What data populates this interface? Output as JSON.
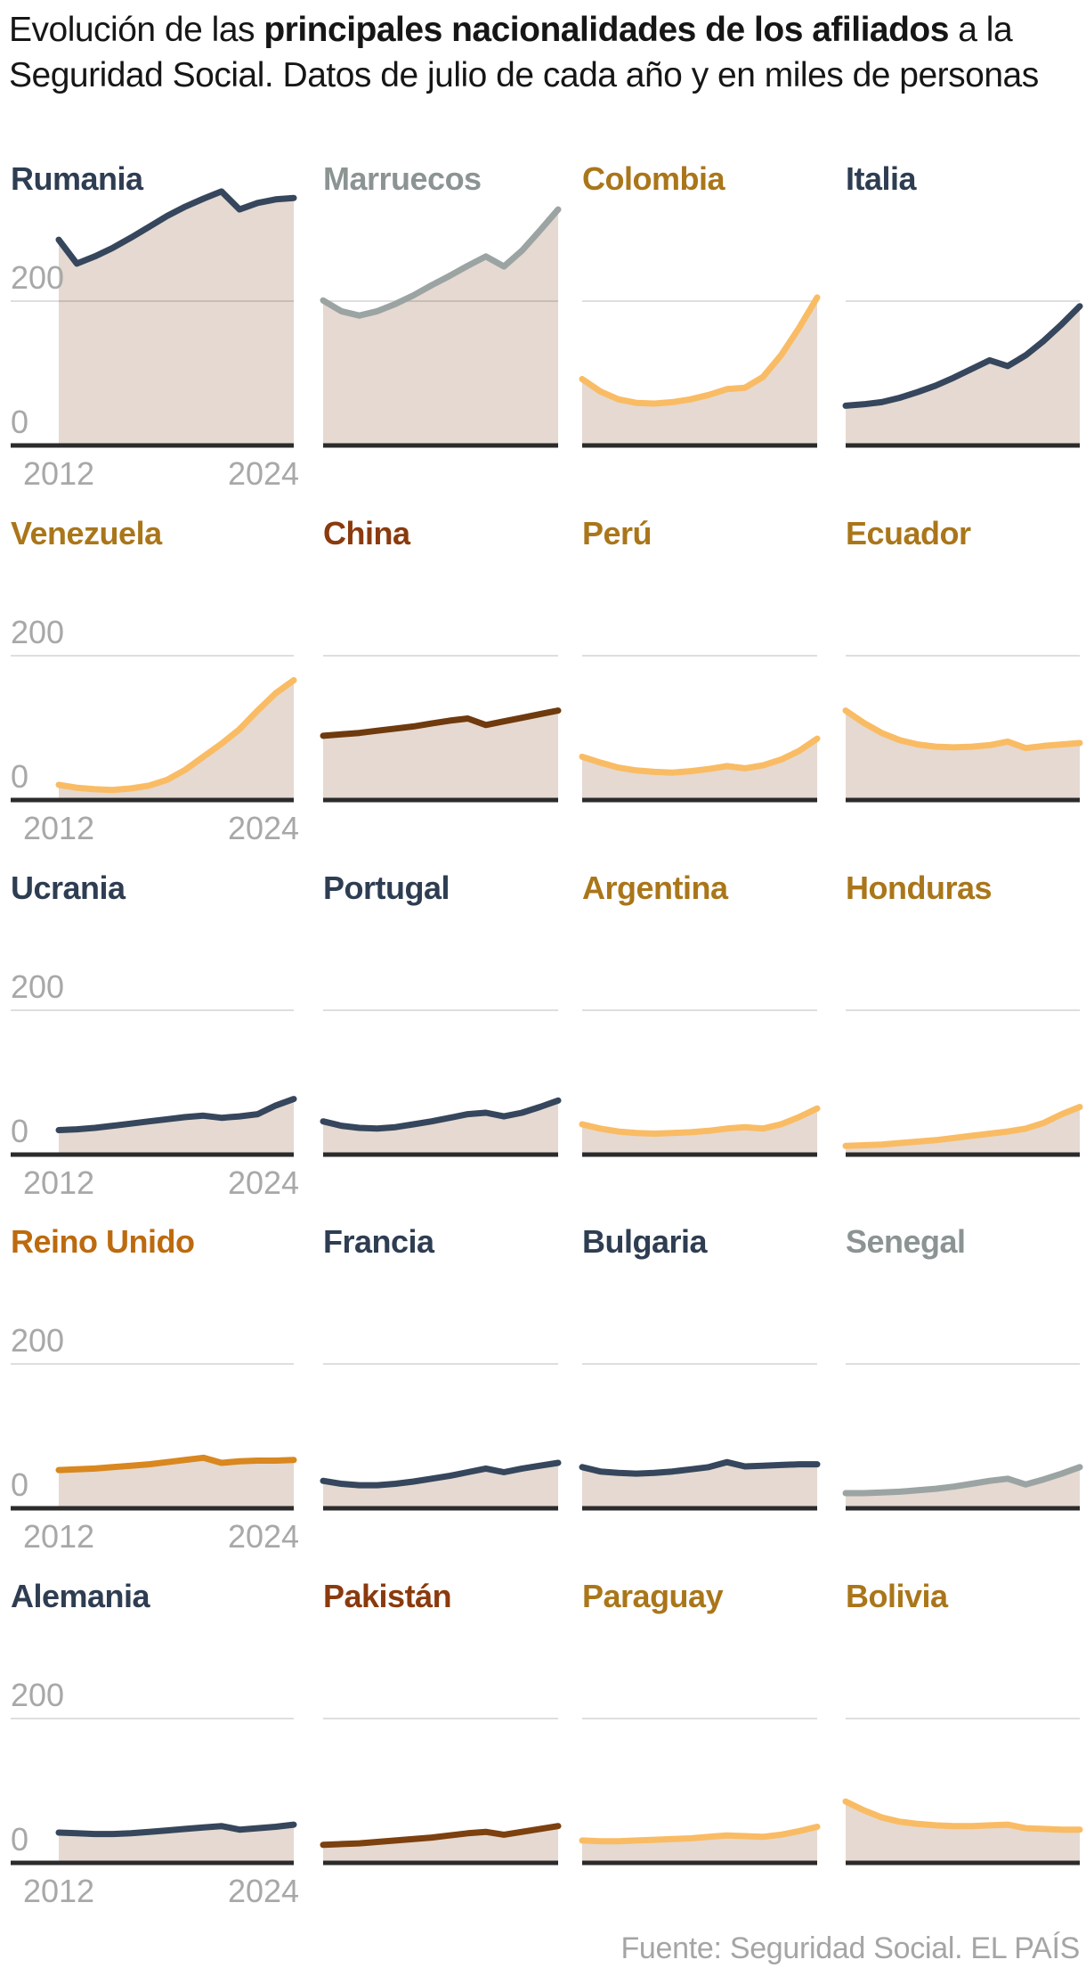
{
  "header": {
    "prefix": "Evolución de las ",
    "bold": "principales nacionalidades de los afiliados",
    "suffix": " a la Seguridad Social. Datos de julio de cada año y en miles de personas"
  },
  "footer": {
    "source": "Fuente: Seguridad Social. EL PAÍS"
  },
  "axis": {
    "y_top": "200",
    "y_bottom": "0",
    "x_first": "2012",
    "x_last": "2024"
  },
  "colors": {
    "fill": "#e5d9d1",
    "baseline": "#2b2b2b",
    "gridline": "rgba(0,0,0,0.13)",
    "axis_text": "#a8a8a8",
    "navy_line": "#36465c",
    "navy_title": "#2e3d52",
    "gray_line": "#9ba4a3",
    "gray_title": "#8b9493",
    "amber_line": "#f9bc64",
    "amber_title": "#aa761a",
    "orange_line": "#d9871f",
    "orange_title": "#bd6a0e",
    "brown_line": "#6f3a0e",
    "brown2_line": "#7d400f",
    "brown_title": "#8a3a0d"
  },
  "chart_data": {
    "type": "area",
    "title": "Evolución de las principales nacionalidades de los afiliados a la Seguridad Social",
    "unit": "miles de personas",
    "x": [
      2012,
      2013,
      2014,
      2015,
      2016,
      2017,
      2018,
      2019,
      2020,
      2021,
      2022,
      2023,
      2024,
      2025
    ],
    "ylim": [
      0,
      360
    ],
    "grid_value": 200,
    "series": [
      {
        "name": "Rumania",
        "palette": "navy",
        "values": [
          285,
          252,
          262,
          274,
          288,
          303,
          318,
          331,
          342,
          352,
          327,
          336,
          341,
          343
        ]
      },
      {
        "name": "Marruecos",
        "palette": "gray",
        "values": [
          201,
          186,
          180,
          186,
          196,
          208,
          222,
          235,
          249,
          262,
          248,
          270,
          298,
          327
        ]
      },
      {
        "name": "Colombia",
        "palette": "amber",
        "values": [
          92,
          75,
          64,
          59,
          58,
          60,
          64,
          70,
          78,
          80,
          95,
          125,
          163,
          205
        ]
      },
      {
        "name": "Italia",
        "palette": "navy",
        "values": [
          55,
          57,
          60,
          66,
          74,
          83,
          94,
          106,
          118,
          110,
          125,
          145,
          168,
          193
        ]
      },
      {
        "name": "Venezuela",
        "palette": "amber",
        "values": [
          21,
          17,
          15,
          14,
          16,
          20,
          28,
          42,
          60,
          78,
          98,
          124,
          148,
          166
        ]
      },
      {
        "name": "China",
        "palette": "brown",
        "values": [
          89,
          91,
          93,
          96,
          99,
          102,
          106,
          110,
          113,
          104,
          109,
          114,
          119,
          124
        ]
      },
      {
        "name": "Perú",
        "palette": "amber",
        "values": [
          60,
          52,
          45,
          41,
          39,
          38,
          40,
          43,
          47,
          44,
          48,
          56,
          68,
          85
        ]
      },
      {
        "name": "Ecuador",
        "palette": "amber",
        "values": [
          124,
          107,
          93,
          83,
          77,
          74,
          73,
          74,
          76,
          81,
          72,
          75,
          77,
          79
        ]
      },
      {
        "name": "Ucrania",
        "palette": "navy",
        "values": [
          34,
          35,
          37,
          40,
          43,
          46,
          49,
          52,
          54,
          51,
          53,
          56,
          68,
          77
        ]
      },
      {
        "name": "Portugal",
        "palette": "navy",
        "values": [
          46,
          40,
          37,
          36,
          38,
          42,
          46,
          51,
          56,
          58,
          53,
          58,
          66,
          75
        ]
      },
      {
        "name": "Argentina",
        "palette": "amber",
        "values": [
          42,
          36,
          32,
          30,
          29,
          30,
          31,
          33,
          36,
          38,
          36,
          42,
          52,
          64
        ]
      },
      {
        "name": "Honduras",
        "palette": "amber",
        "values": [
          12,
          13,
          14,
          16,
          18,
          20,
          23,
          26,
          29,
          32,
          36,
          44,
          56,
          66
        ]
      },
      {
        "name": "Reino Unido",
        "palette": "orange",
        "values": [
          53,
          54,
          55,
          57,
          59,
          61,
          64,
          67,
          70,
          63,
          65,
          66,
          66,
          67
        ]
      },
      {
        "name": "Francia",
        "palette": "navy",
        "values": [
          38,
          34,
          32,
          32,
          34,
          37,
          41,
          45,
          50,
          55,
          50,
          55,
          59,
          63
        ]
      },
      {
        "name": "Bulgaria",
        "palette": "navy",
        "values": [
          57,
          51,
          49,
          48,
          49,
          51,
          54,
          57,
          64,
          58,
          59,
          60,
          61,
          61
        ]
      },
      {
        "name": "Senegal",
        "palette": "gray",
        "values": [
          21,
          21,
          22,
          23,
          25,
          27,
          30,
          34,
          38,
          41,
          33,
          40,
          48,
          57
        ]
      },
      {
        "name": "Alemania",
        "palette": "navy",
        "values": [
          42,
          41,
          40,
          40,
          41,
          43,
          45,
          47,
          49,
          51,
          46,
          48,
          50,
          53
        ]
      },
      {
        "name": "Pakistán",
        "palette": "brown2",
        "values": [
          25,
          26,
          27,
          29,
          31,
          33,
          35,
          38,
          41,
          43,
          39,
          43,
          47,
          51
        ]
      },
      {
        "name": "Paraguay",
        "palette": "amber",
        "values": [
          31,
          30,
          30,
          31,
          32,
          33,
          34,
          36,
          38,
          37,
          36,
          39,
          44,
          50
        ]
      },
      {
        "name": "Bolivia",
        "palette": "amber",
        "values": [
          85,
          73,
          63,
          57,
          54,
          52,
          51,
          51,
          52,
          53,
          48,
          47,
          46,
          46
        ]
      }
    ]
  }
}
